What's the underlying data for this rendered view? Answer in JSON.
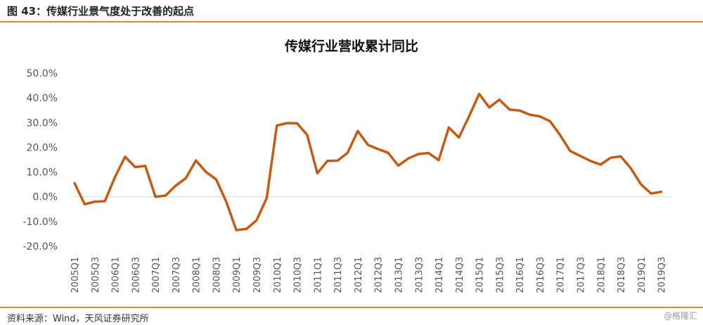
{
  "figure": {
    "caption": "图 43：传媒行业景气度处于改善的起点",
    "source": "资料来源：Wind，天风证券研究所",
    "watermark": "@格隆汇"
  },
  "colors": {
    "line": "#c55a11",
    "rule": "#e8891f"
  },
  "chart_data": {
    "type": "line",
    "title": "传媒行业营收累计同比",
    "xlabel": "",
    "ylabel": "",
    "ylim": [
      -20,
      50
    ],
    "yticks": [
      -20,
      -10,
      0,
      10,
      20,
      30,
      40,
      50
    ],
    "ytick_labels": [
      "-20.0%",
      "-10.0%",
      "0.0%",
      "10.0%",
      "20.0%",
      "30.0%",
      "40.0%",
      "50.0%"
    ],
    "grid": false,
    "legend": "none",
    "x_tick_labels": [
      "2005Q1",
      "2005Q3",
      "2006Q1",
      "2006Q3",
      "2007Q1",
      "2007Q3",
      "2008Q1",
      "2008Q3",
      "2009Q1",
      "2009Q3",
      "2010Q1",
      "2010Q3",
      "2011Q1",
      "2011Q3",
      "2012Q1",
      "2012Q3",
      "2013Q1",
      "2013Q3",
      "2014Q1",
      "2014Q3",
      "2015Q1",
      "2015Q3",
      "2016Q1",
      "2016Q3",
      "2017Q1",
      "2017Q3",
      "2018Q1",
      "2018Q3",
      "2019Q1",
      "2019Q3"
    ],
    "categories": [
      "2005Q1",
      "2005Q2",
      "2005Q3",
      "2005Q4",
      "2006Q1",
      "2006Q2",
      "2006Q3",
      "2006Q4",
      "2007Q1",
      "2007Q2",
      "2007Q3",
      "2007Q4",
      "2008Q1",
      "2008Q2",
      "2008Q3",
      "2008Q4",
      "2009Q1",
      "2009Q2",
      "2009Q3",
      "2009Q4",
      "2010Q1",
      "2010Q2",
      "2010Q3",
      "2010Q4",
      "2011Q1",
      "2011Q2",
      "2011Q3",
      "2011Q4",
      "2012Q1",
      "2012Q2",
      "2012Q3",
      "2012Q4",
      "2013Q1",
      "2013Q2",
      "2013Q3",
      "2013Q4",
      "2014Q1",
      "2014Q2",
      "2014Q3",
      "2014Q4",
      "2015Q1",
      "2015Q2",
      "2015Q3",
      "2015Q4",
      "2016Q1",
      "2016Q2",
      "2016Q3",
      "2016Q4",
      "2017Q1",
      "2017Q2",
      "2017Q3",
      "2017Q4",
      "2018Q1",
      "2018Q2",
      "2018Q3",
      "2018Q4",
      "2019Q1",
      "2019Q2",
      "2019Q3",
      "2019Q4"
    ],
    "series": [
      {
        "values": [
          5.5,
          -3.0,
          -2.0,
          -1.8,
          8.0,
          16.2,
          12.0,
          12.5,
          0.0,
          0.5,
          4.5,
          7.5,
          14.7,
          10.0,
          7.0,
          -2.0,
          -13.5,
          -13.0,
          -9.5,
          -0.5,
          28.8,
          29.8,
          29.7,
          25.0,
          9.5,
          14.5,
          14.6,
          17.8,
          26.6,
          21.0,
          19.3,
          17.8,
          12.6,
          15.5,
          17.3,
          17.7,
          14.8,
          28.0,
          24.0,
          32.5,
          41.6,
          36.1,
          39.3,
          35.3,
          34.9,
          33.2,
          32.5,
          30.6,
          25.0,
          18.5,
          16.5,
          14.5,
          13.0,
          15.8,
          16.3,
          11.5,
          5.0,
          1.3,
          2.0,
          null
        ]
      }
    ]
  }
}
